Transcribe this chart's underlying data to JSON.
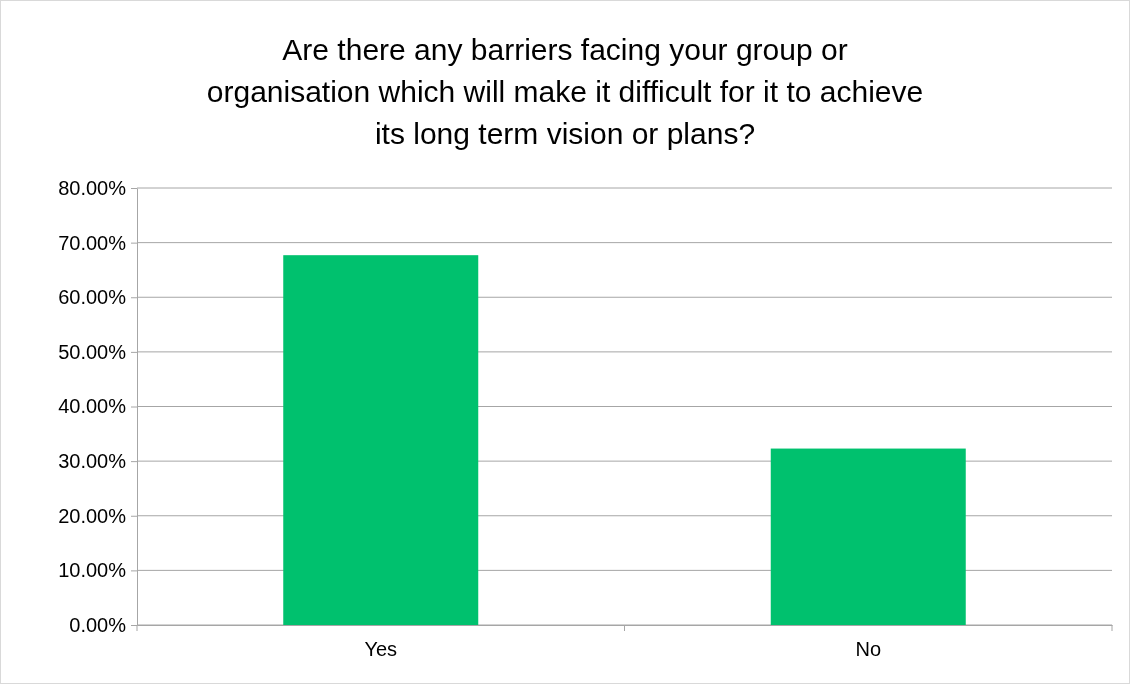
{
  "chart_data": {
    "type": "bar",
    "title": "Are there any barriers facing your group or organisation which will make it difficult for it to achieve its long term vision or plans?",
    "categories": [
      "Yes",
      "No"
    ],
    "values": [
      67.7,
      32.3
    ],
    "color": "#00c16e",
    "ylim": [
      0,
      80
    ],
    "yticks": [
      {
        "value": 0,
        "label": "0.00%"
      },
      {
        "value": 10,
        "label": "10.00%"
      },
      {
        "value": 20,
        "label": "20.00%"
      },
      {
        "value": 30,
        "label": "30.00%"
      },
      {
        "value": 40,
        "label": "40.00%"
      },
      {
        "value": 50,
        "label": "50.00%"
      },
      {
        "value": 60,
        "label": "60.00%"
      },
      {
        "value": 70,
        "label": "70.00%"
      },
      {
        "value": 80,
        "label": "80.00%"
      }
    ],
    "grid": "y"
  }
}
